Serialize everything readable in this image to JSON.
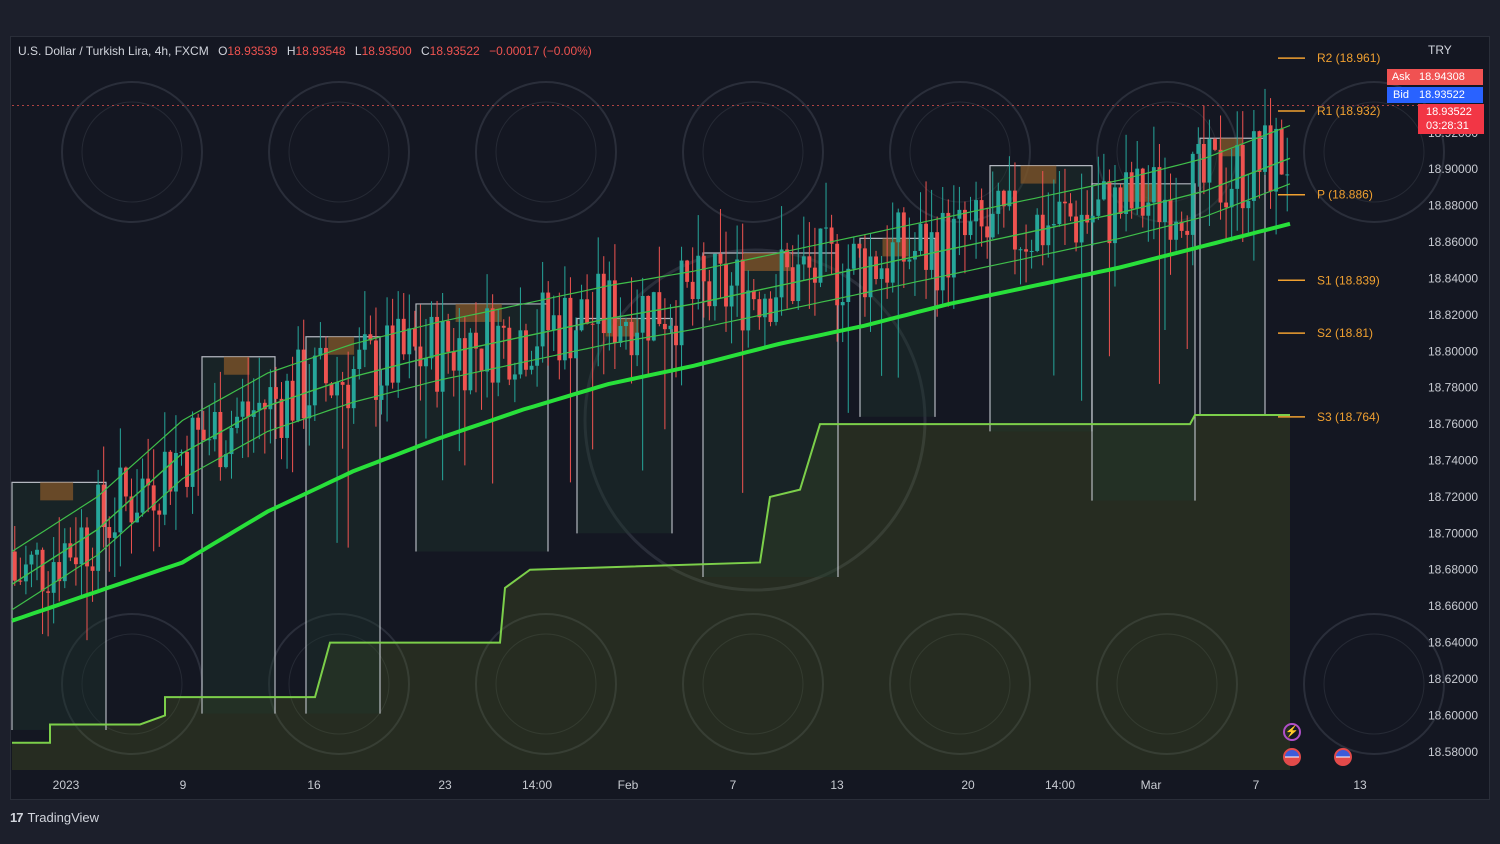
{
  "header": {
    "symbol": "U.S. Dollar / Turkish Lira, 4h, FXCM",
    "open_label": "O",
    "open": "18.93539",
    "high_label": "H",
    "high": "18.93548",
    "low_label": "L",
    "low": "18.93500",
    "close_label": "C",
    "close": "18.93522",
    "change": "−0.00017 (−0.00%)"
  },
  "price_scale": {
    "currency": "TRY"
  },
  "quotes": {
    "ask_label": "Ask",
    "ask": "18.94308",
    "bid_label": "Bid",
    "bid": "18.93522",
    "last": "18.93522",
    "countdown": "03:28:31"
  },
  "footer": {
    "brand": "TradingView"
  },
  "events": {
    "flash_icon": "lightning-icon",
    "flag_icon": "us-flag-icon"
  },
  "colors": {
    "up": "#26a69a",
    "down": "#ef5350",
    "ema_main": "#28e03a",
    "ema_thin": "#3fbf4a",
    "pivot": "#f0a030",
    "support_line": "#7ccf4a",
    "resistance_box": "#8a5a2a",
    "range_box": "#cfd2da",
    "support_fill": "#6a7a20"
  },
  "chart_data": {
    "type": "candlestick",
    "timeframe": "4h",
    "y_axis": {
      "ticks": [
        "18.92000",
        "18.90000",
        "18.88000",
        "18.86000",
        "18.84000",
        "18.82000",
        "18.80000",
        "18.78000",
        "18.76000",
        "18.74000",
        "18.72000",
        "18.70000",
        "18.68000",
        "18.66000",
        "18.64000",
        "18.62000",
        "18.60000",
        "18.58000"
      ],
      "range": [
        18.57,
        18.96
      ]
    },
    "x_axis": {
      "ticks": [
        "2023",
        "9",
        "16",
        "23",
        "14:00",
        "Feb",
        "7",
        "13",
        "20",
        "14:00",
        "Mar",
        "7",
        "13"
      ]
    },
    "pivot_levels": [
      {
        "label": "R2 (18.961)",
        "value": 18.961
      },
      {
        "label": "R1 (18.932)",
        "value": 18.932
      },
      {
        "label": "P (18.886)",
        "value": 18.886
      },
      {
        "label": "S1 (18.839)",
        "value": 18.839
      },
      {
        "label": "S2 (18.81)",
        "value": 18.81
      },
      {
        "label": "S3 (18.764)",
        "value": 18.764
      }
    ],
    "ema_main": [
      18.652,
      18.668,
      18.684,
      18.712,
      18.734,
      18.752,
      18.768,
      18.782,
      18.792,
      18.804,
      18.814,
      18.826,
      18.836,
      18.846,
      18.858,
      18.87
    ],
    "ema_fast": [
      18.672,
      18.702,
      18.744,
      18.77,
      18.786,
      18.798,
      18.808,
      18.818,
      18.826,
      18.836,
      18.846,
      18.856,
      18.866,
      18.876,
      18.888,
      18.906
    ],
    "ohlc_samples": [
      [
        18.7,
        18.72,
        18.66,
        18.69
      ],
      [
        18.69,
        18.76,
        18.68,
        18.75
      ],
      [
        18.75,
        18.8,
        18.7,
        18.78
      ],
      [
        18.78,
        18.81,
        18.74,
        18.77
      ],
      [
        18.77,
        18.8,
        18.72,
        18.79
      ],
      [
        18.79,
        18.83,
        18.76,
        18.8
      ],
      [
        18.8,
        18.85,
        18.78,
        18.83
      ],
      [
        18.83,
        18.86,
        18.79,
        18.82
      ],
      [
        18.82,
        18.87,
        18.8,
        18.85
      ],
      [
        18.85,
        18.9,
        18.76,
        18.88
      ],
      [
        18.88,
        18.92,
        18.85,
        18.9
      ],
      [
        18.9,
        18.94,
        18.86,
        18.935
      ]
    ]
  }
}
